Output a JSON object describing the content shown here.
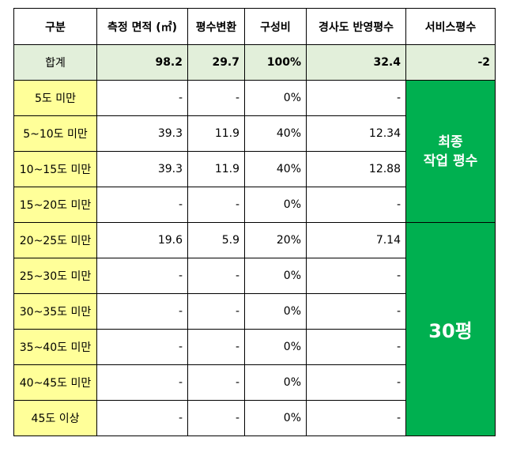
{
  "headers": [
    "구분",
    "측정 면적 (㎡)",
    "평수변환",
    "구성비",
    "경사도 반영평수",
    "서비스평수"
  ],
  "total": {
    "label": "합계",
    "area": "98.2",
    "pyeong": "29.7",
    "ratio": "100%",
    "slope": "32.4",
    "service": "-2"
  },
  "rows": [
    {
      "label": "5도 미만",
      "area": "-",
      "pyeong": "-",
      "ratio": "0%",
      "slope": "-"
    },
    {
      "label": "5~10도 미만",
      "area": "39.3",
      "pyeong": "11.9",
      "ratio": "40%",
      "slope": "12.34"
    },
    {
      "label": "10~15도 미만",
      "area": "39.3",
      "pyeong": "11.9",
      "ratio": "40%",
      "slope": "12.88"
    },
    {
      "label": "15~20도 미만",
      "area": "-",
      "pyeong": "-",
      "ratio": "0%",
      "slope": "-"
    },
    {
      "label": "20~25도 미만",
      "area": "19.6",
      "pyeong": "5.9",
      "ratio": "20%",
      "slope": "7.14"
    },
    {
      "label": "25~30도 미만",
      "area": "-",
      "pyeong": "-",
      "ratio": "0%",
      "slope": "-"
    },
    {
      "label": "30~35도 미만",
      "area": "-",
      "pyeong": "-",
      "ratio": "0%",
      "slope": "-"
    },
    {
      "label": "35~40도 미만",
      "area": "-",
      "pyeong": "-",
      "ratio": "0%",
      "slope": "-"
    },
    {
      "label": "40~45도 미만",
      "area": "-",
      "pyeong": "-",
      "ratio": "0%",
      "slope": "-"
    },
    {
      "label": "45도 이상",
      "area": "-",
      "pyeong": "-",
      "ratio": "0%",
      "slope": "-"
    }
  ],
  "merged": {
    "final_label_line1": "최종",
    "final_label_line2": "작업 평수",
    "final_value": "30평"
  },
  "colors": {
    "total_row": "#e2efda",
    "category_cells": "#ffff99",
    "highlight": "#00b050",
    "negative": "#ff0000"
  }
}
